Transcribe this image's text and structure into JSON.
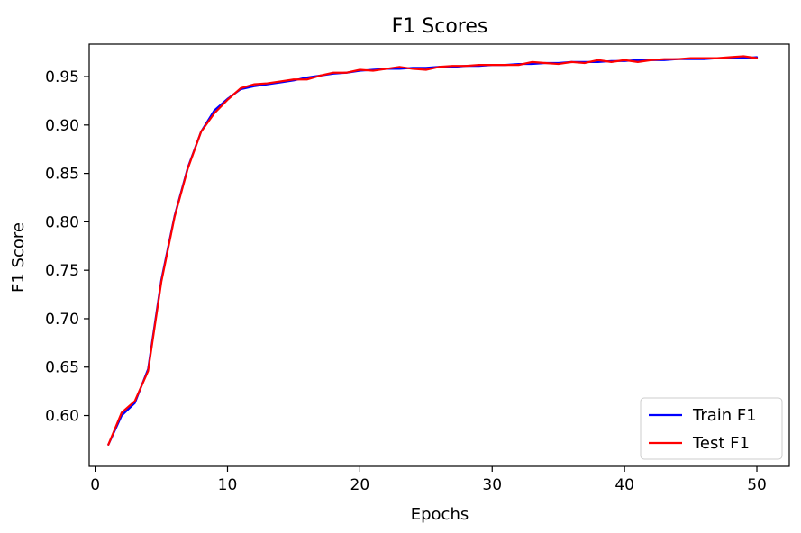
{
  "chart_data": {
    "type": "line",
    "title": "F1 Scores",
    "xlabel": "Epochs",
    "ylabel": "F1 Score",
    "xlim": [
      -0.45,
      52.45
    ],
    "ylim": [
      0.5475,
      0.9835
    ],
    "xticks": [
      0,
      10,
      20,
      30,
      40,
      50
    ],
    "yticks": [
      0.6,
      0.65,
      0.7,
      0.75,
      0.8,
      0.85,
      0.9,
      0.95
    ],
    "ytick_labels": [
      "0.60",
      "0.65",
      "0.70",
      "0.75",
      "0.80",
      "0.85",
      "0.90",
      "0.95"
    ],
    "grid": false,
    "legend_position": "lower-right",
    "x": [
      1,
      2,
      3,
      4,
      5,
      6,
      7,
      8,
      9,
      10,
      11,
      12,
      13,
      14,
      15,
      16,
      17,
      18,
      19,
      20,
      21,
      22,
      23,
      24,
      25,
      26,
      27,
      28,
      29,
      30,
      31,
      32,
      33,
      34,
      35,
      36,
      37,
      38,
      39,
      40,
      41,
      42,
      43,
      44,
      45,
      46,
      47,
      48,
      49,
      50
    ],
    "series": [
      {
        "name": "Train F1",
        "color": "#0000ff",
        "values": [
          0.57,
          0.6,
          0.613,
          0.648,
          0.74,
          0.806,
          0.856,
          0.893,
          0.915,
          0.927,
          0.937,
          0.94,
          0.942,
          0.944,
          0.946,
          0.949,
          0.951,
          0.953,
          0.954,
          0.956,
          0.957,
          0.958,
          0.958,
          0.959,
          0.959,
          0.96,
          0.96,
          0.961,
          0.961,
          0.962,
          0.962,
          0.963,
          0.963,
          0.964,
          0.964,
          0.965,
          0.965,
          0.965,
          0.966,
          0.966,
          0.967,
          0.967,
          0.967,
          0.968,
          0.968,
          0.968,
          0.969,
          0.969,
          0.969,
          0.97
        ]
      },
      {
        "name": "Test F1",
        "color": "#ff0000",
        "values": [
          0.57,
          0.603,
          0.615,
          0.646,
          0.738,
          0.805,
          0.855,
          0.893,
          0.912,
          0.926,
          0.938,
          0.942,
          0.943,
          0.945,
          0.947,
          0.947,
          0.951,
          0.954,
          0.954,
          0.957,
          0.956,
          0.958,
          0.96,
          0.958,
          0.957,
          0.96,
          0.961,
          0.961,
          0.962,
          0.962,
          0.962,
          0.962,
          0.965,
          0.964,
          0.963,
          0.965,
          0.964,
          0.967,
          0.965,
          0.967,
          0.965,
          0.967,
          0.968,
          0.968,
          0.969,
          0.969,
          0.969,
          0.97,
          0.971,
          0.969
        ]
      }
    ]
  }
}
